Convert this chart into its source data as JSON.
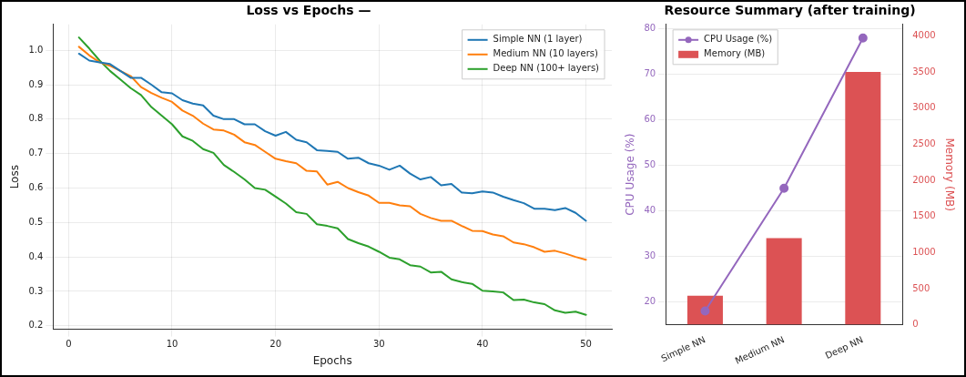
{
  "chart_data": [
    {
      "type": "line",
      "title": "Loss vs Epochs —",
      "xlabel": "Epochs",
      "ylabel": "Loss",
      "x": [
        1,
        2,
        3,
        4,
        5,
        6,
        7,
        8,
        9,
        10,
        11,
        12,
        13,
        14,
        15,
        16,
        17,
        18,
        19,
        20,
        21,
        22,
        23,
        24,
        25,
        26,
        27,
        28,
        29,
        30,
        31,
        32,
        33,
        34,
        35,
        36,
        37,
        38,
        39,
        40,
        41,
        42,
        43,
        44,
        45,
        46,
        47,
        48,
        49,
        50
      ],
      "series": [
        {
          "name": "Simple NN (1 layer)",
          "color": "#1f77b4",
          "values": [
            0.99,
            0.97,
            0.965,
            0.96,
            0.94,
            0.92,
            0.92,
            0.9,
            0.878,
            0.875,
            0.855,
            0.845,
            0.84,
            0.81,
            0.8,
            0.8,
            0.785,
            0.785,
            0.765,
            0.752,
            0.763,
            0.74,
            0.733,
            0.71,
            0.708,
            0.705,
            0.685,
            0.688,
            0.672,
            0.665,
            0.653,
            0.665,
            0.642,
            0.625,
            0.632,
            0.608,
            0.612,
            0.587,
            0.585,
            0.59,
            0.587,
            0.575,
            0.565,
            0.556,
            0.54,
            0.54,
            0.536,
            0.542,
            0.528,
            0.505
          ]
        },
        {
          "name": "Medium NN (10 layers)",
          "color": "#ff7f0e",
          "values": [
            1.01,
            0.985,
            0.965,
            0.955,
            0.94,
            0.925,
            0.893,
            0.876,
            0.862,
            0.85,
            0.825,
            0.81,
            0.787,
            0.77,
            0.767,
            0.755,
            0.733,
            0.725,
            0.705,
            0.685,
            0.678,
            0.672,
            0.65,
            0.648,
            0.61,
            0.618,
            0.6,
            0.588,
            0.578,
            0.557,
            0.557,
            0.55,
            0.547,
            0.525,
            0.513,
            0.505,
            0.505,
            0.49,
            0.476,
            0.475,
            0.465,
            0.46,
            0.442,
            0.437,
            0.428,
            0.415,
            0.418,
            0.41,
            0.4,
            0.392
          ]
        },
        {
          "name": "Deep NN (100+ layers)",
          "color": "#2ca02c",
          "values": [
            1.037,
            1.005,
            0.97,
            0.94,
            0.915,
            0.89,
            0.87,
            0.835,
            0.81,
            0.785,
            0.75,
            0.737,
            0.713,
            0.702,
            0.667,
            0.647,
            0.625,
            0.6,
            0.595,
            0.575,
            0.555,
            0.53,
            0.525,
            0.495,
            0.49,
            0.483,
            0.452,
            0.44,
            0.43,
            0.415,
            0.398,
            0.393,
            0.376,
            0.372,
            0.355,
            0.357,
            0.335,
            0.327,
            0.322,
            0.302,
            0.3,
            0.297,
            0.275,
            0.276,
            0.268,
            0.263,
            0.245,
            0.238,
            0.241,
            0.232
          ]
        }
      ],
      "xlim": [
        -1.5,
        52.5
      ],
      "xticks": [
        0,
        10,
        20,
        30,
        40,
        50
      ],
      "ylim": [
        0.19,
        1.075
      ],
      "yticks": [
        0.2,
        0.3,
        0.4,
        0.5,
        0.6,
        0.7,
        0.8,
        0.9,
        {
          "value": 1,
          "label": "1.0"
        }
      ],
      "grid": true,
      "legend": "top right",
      "line_style": "solid"
    },
    {
      "type": "bar",
      "title": "Resource Summary (after training)",
      "ylabel": "CPU Usage (%)",
      "y2label": "Memory (MB)",
      "categories": [
        "Simple NN",
        "Medium NN",
        "Deep NN"
      ],
      "series": [
        {
          "name": "CPU Usage (%)",
          "type": "line",
          "color": "#9467bd",
          "values": [
            18,
            45,
            78
          ]
        },
        {
          "name": "Memory (MB)",
          "axis": "y2",
          "color": "#dc5254",
          "values": [
            400,
            1200,
            3500
          ]
        }
      ],
      "ylim": [
        15,
        81
      ],
      "yticks": [
        20,
        30,
        40,
        50,
        60,
        70,
        80
      ],
      "y2lim": [
        0,
        4160
      ],
      "y2ticks": [
        0,
        500,
        1000,
        1500,
        2000,
        2500,
        3000,
        3500,
        4000
      ],
      "grid": "y",
      "legend": "top left",
      "marker": "circle"
    }
  ]
}
